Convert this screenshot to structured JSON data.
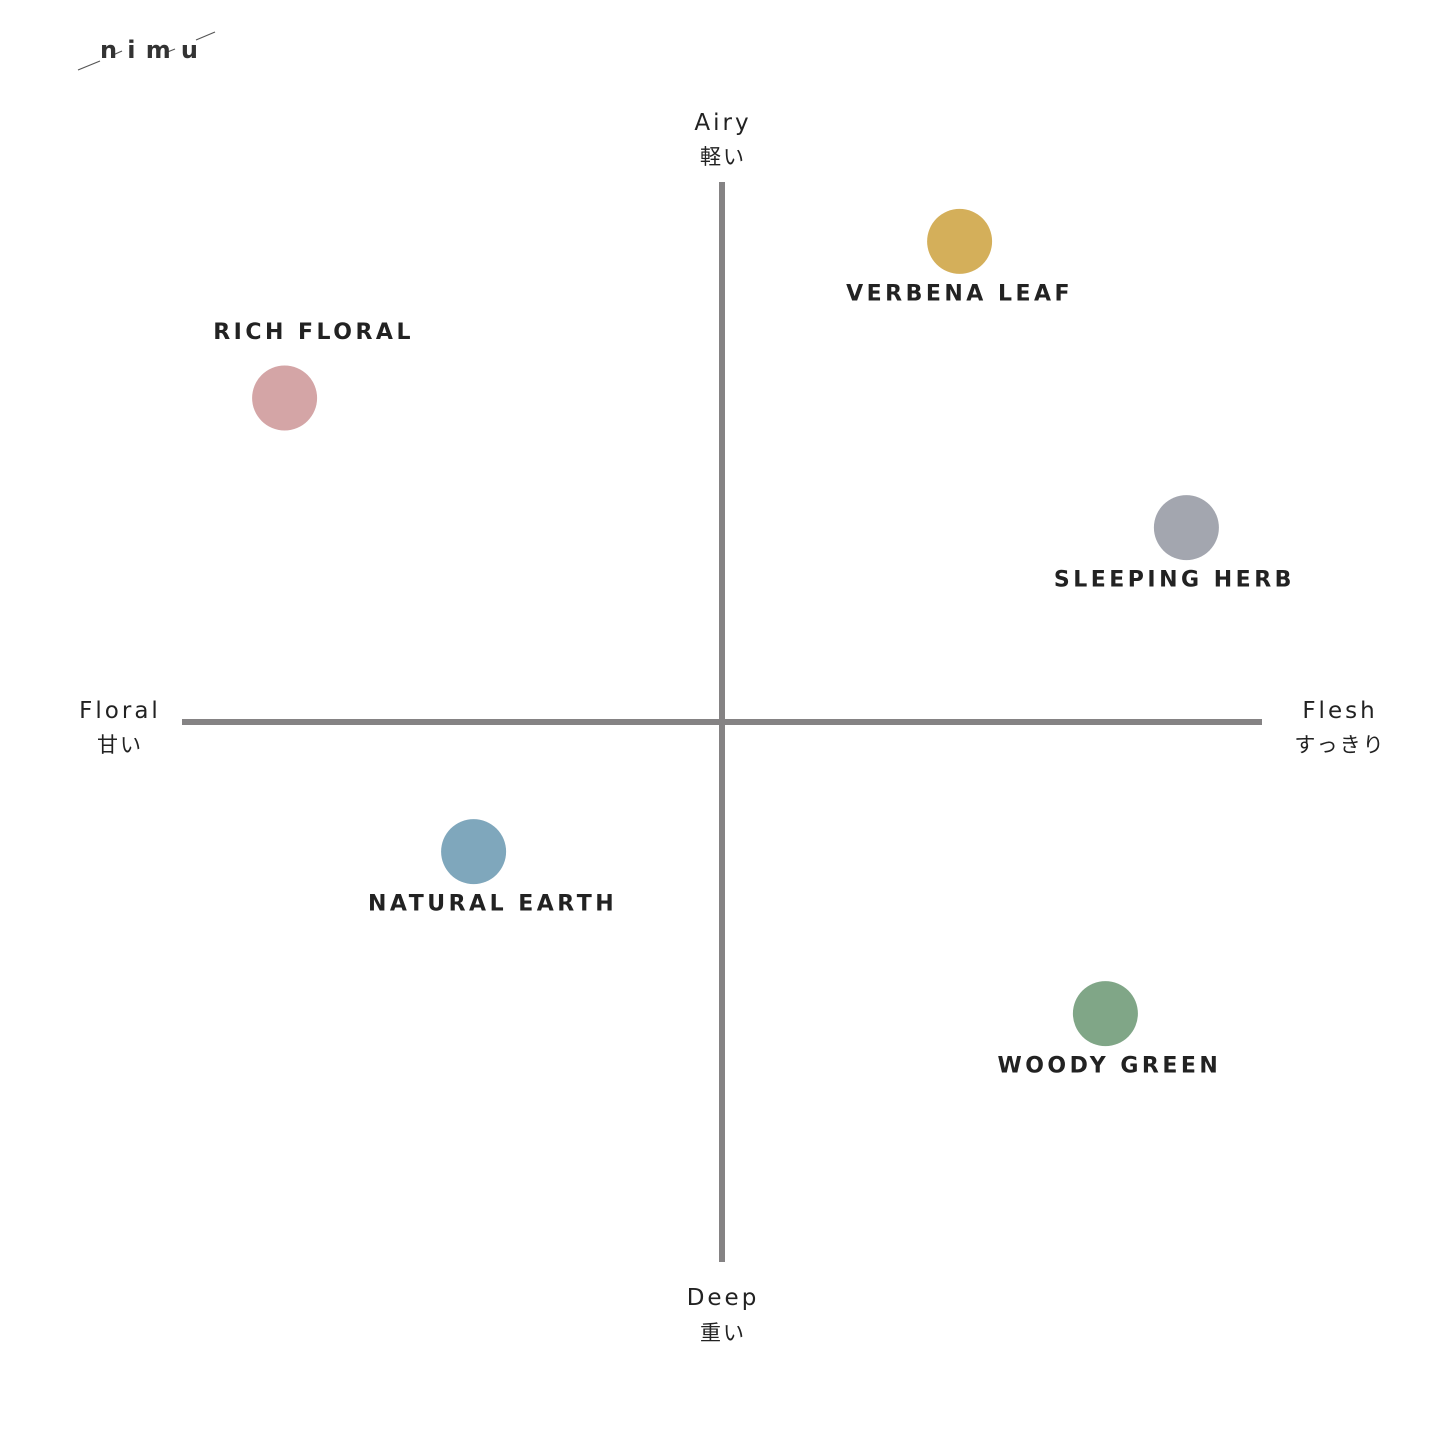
{
  "brand": {
    "logo_text": "nimu"
  },
  "chart_data": {
    "type": "scatter",
    "subtype": "quadrant",
    "xlim": [
      -10,
      10
    ],
    "ylim": [
      -10,
      10
    ],
    "grid": false,
    "axis_color": "#858384",
    "axes": {
      "top": {
        "label": "Airy",
        "label_jp": "軽い"
      },
      "bottom": {
        "label": "Deep",
        "label_jp": "重い"
      },
      "left": {
        "label": "Floral",
        "label_jp": "甘い"
      },
      "right": {
        "label": "Flesh",
        "label_jp": "すっきり"
      }
    },
    "points": [
      {
        "name": "VERBENA LEAF",
        "x": 4.4,
        "y": 8.9,
        "color": "#D4AF5A",
        "label_position": "below"
      },
      {
        "name": "RICH FLORAL",
        "x": -8.1,
        "y": 6.0,
        "color": "#D4A5A6",
        "label_position": "above"
      },
      {
        "name": "SLEEPING HERB",
        "x": 8.6,
        "y": 3.6,
        "color": "#A3A6AF",
        "label_position": "below"
      },
      {
        "name": "NATURAL EARTH",
        "x": -4.6,
        "y": -2.4,
        "color": "#7FA7BC",
        "label_position": "below"
      },
      {
        "name": "WOODY GREEN",
        "x": 7.1,
        "y": -5.4,
        "color": "#80A687",
        "label_position": "below"
      }
    ]
  }
}
